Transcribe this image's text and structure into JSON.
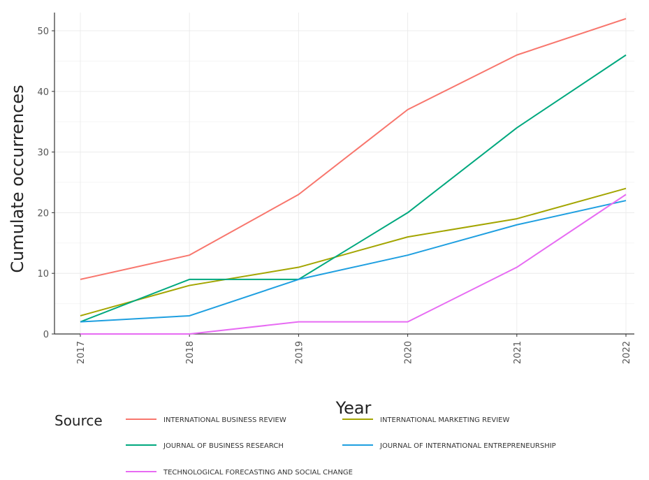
{
  "chart_data": {
    "type": "line",
    "title": "",
    "xlabel": "Year",
    "ylabel": "Cumulate occurrences",
    "x": [
      "2017",
      "2018",
      "2019",
      "2020",
      "2021",
      "2022"
    ],
    "ylim": [
      0,
      53
    ],
    "yticks": [
      0,
      10,
      20,
      30,
      40,
      50
    ],
    "grid": true,
    "legend_title": "Source",
    "legend_position": "bottom",
    "series": [
      {
        "name": "INTERNATIONAL BUSINESS REVIEW",
        "color": "#F8766D",
        "values": [
          9,
          13,
          23,
          37,
          46,
          52
        ]
      },
      {
        "name": "INTERNATIONAL MARKETING REVIEW",
        "color": "#A3A500",
        "values": [
          3,
          8,
          11,
          16,
          19,
          24
        ]
      },
      {
        "name": "JOURNAL OF BUSINESS RESEARCH",
        "color": "#00A87E",
        "values": [
          2,
          9,
          9,
          20,
          34,
          46
        ]
      },
      {
        "name": "JOURNAL OF INTERNATIONAL ENTREPRENEURSHIP",
        "color": "#1E9FE0",
        "values": [
          2,
          3,
          9,
          13,
          18,
          22
        ]
      },
      {
        "name": "TECHNOLOGICAL FORECASTING AND SOCIAL CHANGE",
        "color": "#E76BF3",
        "values": [
          0,
          0,
          2,
          2,
          11,
          23
        ]
      }
    ]
  }
}
